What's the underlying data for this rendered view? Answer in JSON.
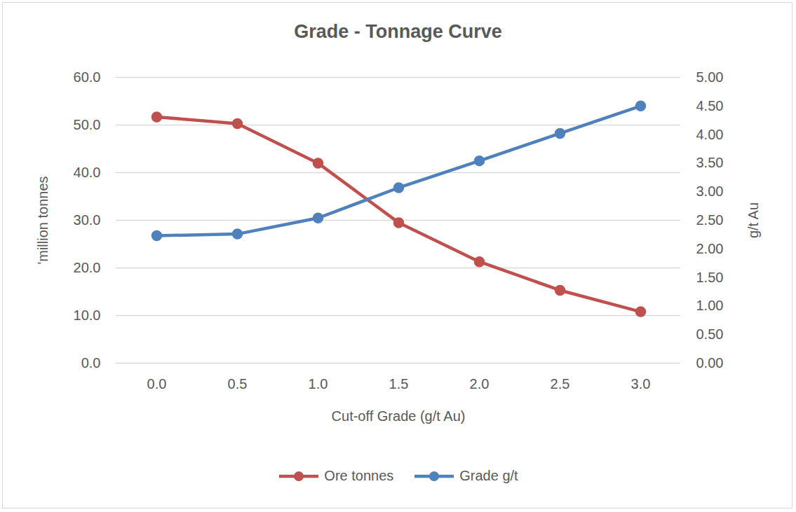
{
  "chart_data": {
    "type": "line",
    "title": "Grade - Tonnage Curve",
    "x_label": "Cut-off Grade (g/t Au)",
    "y_label": "'million tonnes",
    "y2_label": "g/t Au",
    "categories": [
      "0.0",
      "0.5",
      "1.0",
      "1.5",
      "2.0",
      "2.5",
      "3.0"
    ],
    "series": [
      {
        "name": "Ore tonnes",
        "color": "#c0504d",
        "marker": "circle",
        "values": [
          51.7,
          50.3,
          42.0,
          29.5,
          21.3,
          15.3,
          10.8
        ]
      },
      {
        "name": "Grade g/t",
        "color": "#4f81bd",
        "marker": "circle",
        "axis": "y2",
        "values": [
          2.23,
          2.26,
          2.54,
          3.07,
          3.54,
          4.02,
          4.5
        ]
      }
    ],
    "ylim": [
      0,
      60
    ],
    "yticks": [
      {
        "value": 0,
        "label": "0.0"
      },
      {
        "value": 10,
        "label": "10.0"
      },
      {
        "value": 20,
        "label": "20.0"
      },
      {
        "value": 30,
        "label": "30.0"
      },
      {
        "value": 40,
        "label": "40.0"
      },
      {
        "value": 50,
        "label": "50.0"
      },
      {
        "value": 60,
        "label": "60.0"
      }
    ],
    "y2lim": [
      0,
      5
    ],
    "y2ticks": [
      {
        "value": 0,
        "label": "0.00"
      },
      {
        "value": 0.5,
        "label": "0.50"
      },
      {
        "value": 1,
        "label": "1.00"
      },
      {
        "value": 1.5,
        "label": "1.50"
      },
      {
        "value": 2,
        "label": "2.00"
      },
      {
        "value": 2.5,
        "label": "2.50"
      },
      {
        "value": 3,
        "label": "3.00"
      },
      {
        "value": 3.5,
        "label": "3.50"
      },
      {
        "value": 4,
        "label": "4.00"
      },
      {
        "value": 4.5,
        "label": "4.50"
      },
      {
        "value": 5,
        "label": "5.00"
      }
    ],
    "grid": true,
    "legend": "bottom"
  }
}
